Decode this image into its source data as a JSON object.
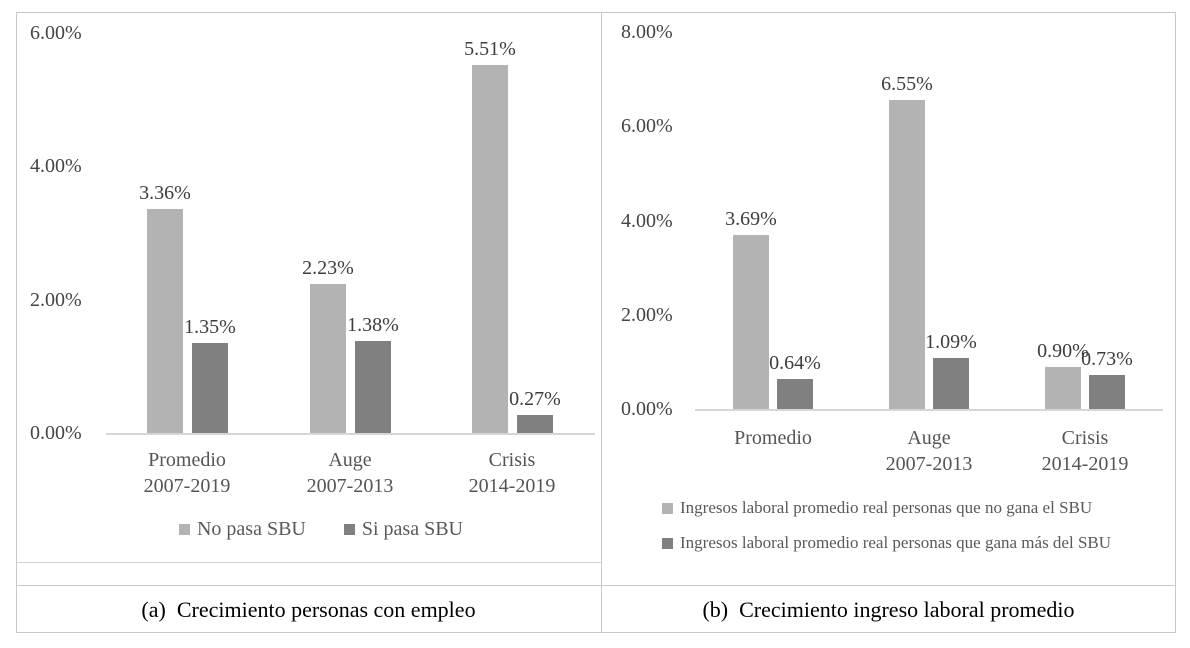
{
  "figure": {
    "captions": {
      "a": "(a)  Crecimiento personas con empleo",
      "b": "(b)  Crecimiento ingreso laboral promedio"
    }
  },
  "colors": {
    "series_light": "#b3b3b3",
    "series_dark": "#808080",
    "axis_line": "#d6d6d6",
    "frame_border": "#c9c9c9",
    "tick_text": "#444444",
    "category_text": "#555555",
    "value_label_text": "#3d3d3d",
    "legend_text": "#595959",
    "caption_text": "#000000"
  },
  "chart_data": [
    {
      "type": "bar",
      "title": "(a) Crecimiento personas con empleo",
      "categories": [
        [
          "Promedio",
          "2007-2019"
        ],
        [
          "Auge",
          "2007-2013"
        ],
        [
          "Crisis",
          "2014-2019"
        ]
      ],
      "series": [
        {
          "name": "No pasa SBU",
          "color": "light",
          "values": [
            3.36,
            2.23,
            5.51
          ],
          "labels": [
            "3.36%",
            "2.23%",
            "5.51%"
          ]
        },
        {
          "name": "Si pasa SBU",
          "color": "dark",
          "values": [
            1.35,
            1.38,
            0.27
          ],
          "labels": [
            "1.35%",
            "1.38%",
            "0.27%"
          ]
        }
      ],
      "ylim": [
        0,
        6
      ],
      "yticks": [
        {
          "value": 0,
          "label": "0.00%"
        },
        {
          "value": 2,
          "label": "2.00%"
        },
        {
          "value": 4,
          "label": "4.00%"
        },
        {
          "value": 6,
          "label": "6.00%"
        }
      ],
      "grid": false,
      "legend_position": "bottom-center"
    },
    {
      "type": "bar",
      "title": "(b) Crecimiento ingreso laboral promedio",
      "categories": [
        [
          "Promedio"
        ],
        [
          "Auge",
          "2007-2013"
        ],
        [
          "Crisis",
          "2014-2019"
        ]
      ],
      "series": [
        {
          "name": "Ingresos laboral promedio real personas que no gana el SBU",
          "color": "light",
          "values": [
            3.69,
            6.55,
            0.9
          ],
          "labels": [
            "3.69%",
            "6.55%",
            "0.90%"
          ]
        },
        {
          "name": "Ingresos laboral promedio real personas que gana más del SBU",
          "color": "dark",
          "values": [
            0.64,
            1.09,
            0.73
          ],
          "labels": [
            "0.64%",
            "1.09%",
            "0.73%"
          ]
        }
      ],
      "ylim": [
        0,
        8
      ],
      "yticks": [
        {
          "value": 0,
          "label": "0.00%"
        },
        {
          "value": 2,
          "label": "2.00%"
        },
        {
          "value": 4,
          "label": "4.00%"
        },
        {
          "value": 6,
          "label": "6.00%"
        },
        {
          "value": 8,
          "label": "8.00%"
        }
      ],
      "grid": false,
      "legend_position": "bottom-left-stacked"
    }
  ]
}
